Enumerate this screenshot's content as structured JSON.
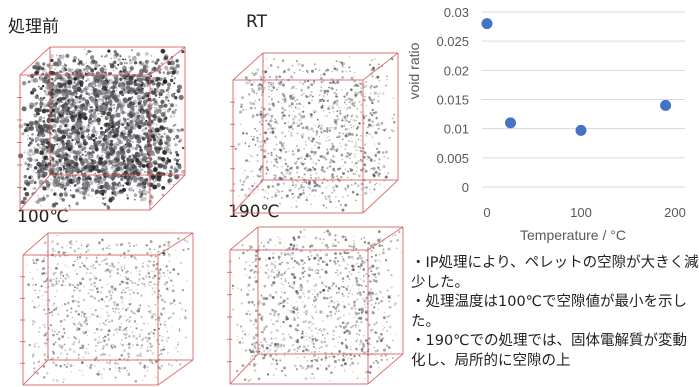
{
  "panels": [
    {
      "label": "処理前",
      "density": 0.95
    },
    {
      "label": "RT",
      "density": 0.3
    },
    {
      "label": "100℃",
      "density": 0.22
    },
    {
      "label": "190℃",
      "density": 0.28
    }
  ],
  "chart_data": {
    "type": "scatter",
    "title": "",
    "xlabel": "Temperature / °C",
    "ylabel": "void ratio",
    "xlim": [
      0,
      200
    ],
    "ylim": [
      0,
      0.03
    ],
    "xticks": [
      "0",
      "100",
      "200"
    ],
    "yticks": [
      "0",
      "0.005",
      "0.01",
      "0.015",
      "0.02",
      "0.025",
      "0.03"
    ],
    "ytick_values": [
      0,
      0.005,
      0.01,
      0.015,
      0.02,
      0.025,
      0.03
    ],
    "xtick_values": [
      0,
      100,
      200
    ],
    "grid": "horizontal",
    "marker_color": "#4472c4",
    "points": [
      {
        "x": 0,
        "y": 0.028
      },
      {
        "x": 25,
        "y": 0.011
      },
      {
        "x": 100,
        "y": 0.0097
      },
      {
        "x": 190,
        "y": 0.014
      }
    ]
  },
  "notes": [
    "・IP処理により、ペレットの空隙が大きく減少した。",
    "・処理温度は100℃で空隙値が最小を示した。",
    "・190℃での処理では、固体電解質が変動化し、局所的に空隙の上"
  ]
}
